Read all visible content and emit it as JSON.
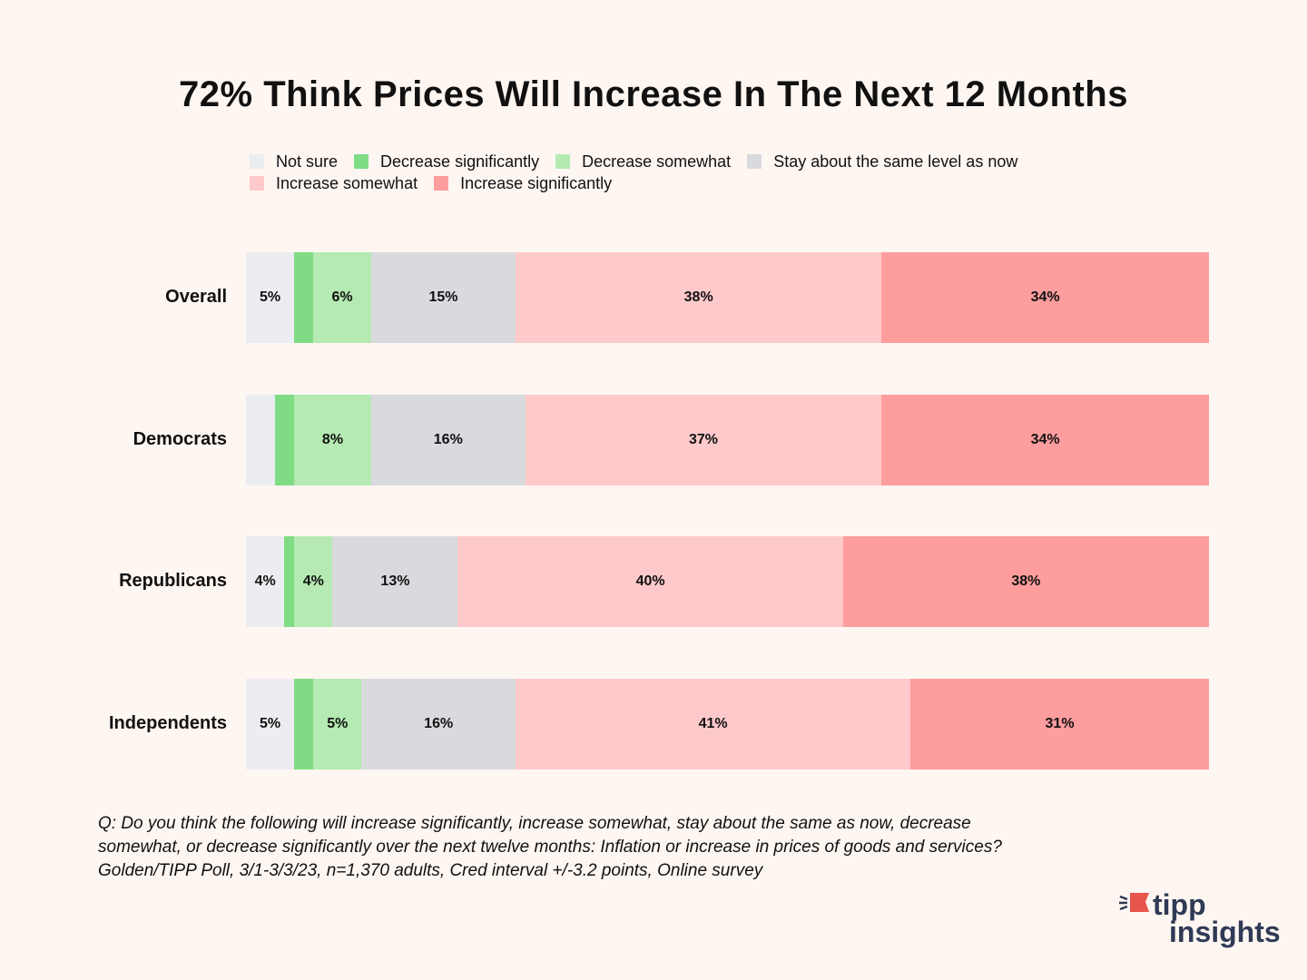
{
  "chart_data": {
    "type": "bar",
    "orientation": "horizontal",
    "stacked": true,
    "normalized": true,
    "title": "72% Think Prices Will Increase In The Next 12 Months",
    "categories": [
      "Overall",
      "Democrats",
      "Republicans",
      "Independents"
    ],
    "series": [
      {
        "name": "Not sure",
        "color": "#EBEDF0",
        "values": [
          5,
          3,
          4,
          5
        ],
        "labels": [
          "5%",
          "",
          "4%",
          "5%"
        ]
      },
      {
        "name": "Decrease significantly",
        "color": "#80DC84",
        "values": [
          2,
          2,
          1,
          2
        ],
        "labels": [
          "",
          "",
          "",
          ""
        ]
      },
      {
        "name": "Decrease somewhat",
        "color": "#B5EAB2",
        "values": [
          6,
          8,
          4,
          5
        ],
        "labels": [
          "6%",
          "8%",
          "4%",
          "5%"
        ]
      },
      {
        "name": "Stay about the same level as now",
        "color": "#D9DADE",
        "values": [
          15,
          16,
          13,
          16
        ],
        "labels": [
          "15%",
          "16%",
          "13%",
          "16%"
        ]
      },
      {
        "name": "Increase somewhat",
        "color": "#FEC9CA",
        "values": [
          38,
          37,
          40,
          41
        ],
        "labels": [
          "38%",
          "37%",
          "40%",
          "41%"
        ]
      },
      {
        "name": "Increase significantly",
        "color": "#FE9D9D",
        "values": [
          34,
          34,
          38,
          31
        ],
        "labels": [
          "34%",
          "34%",
          "38%",
          "31%"
        ]
      }
    ],
    "xlim": [
      0,
      100
    ],
    "legend": "top",
    "grid": false
  },
  "note": {
    "line1": "Q:  Do you think the following will increase significantly, increase somewhat, stay about the same as now, decrease",
    "line2": "somewhat, or decrease significantly over the next twelve months: Inflation or increase in prices of goods and services?",
    "line3": "Golden/TIPP Poll, 3/1-3/3/23, n=1,370 adults, Cred interval +/-3.2 points, Online survey"
  },
  "logo": {
    "line1": "tipp",
    "line2": "insights",
    "icon": "megaphone-flag-icon"
  }
}
